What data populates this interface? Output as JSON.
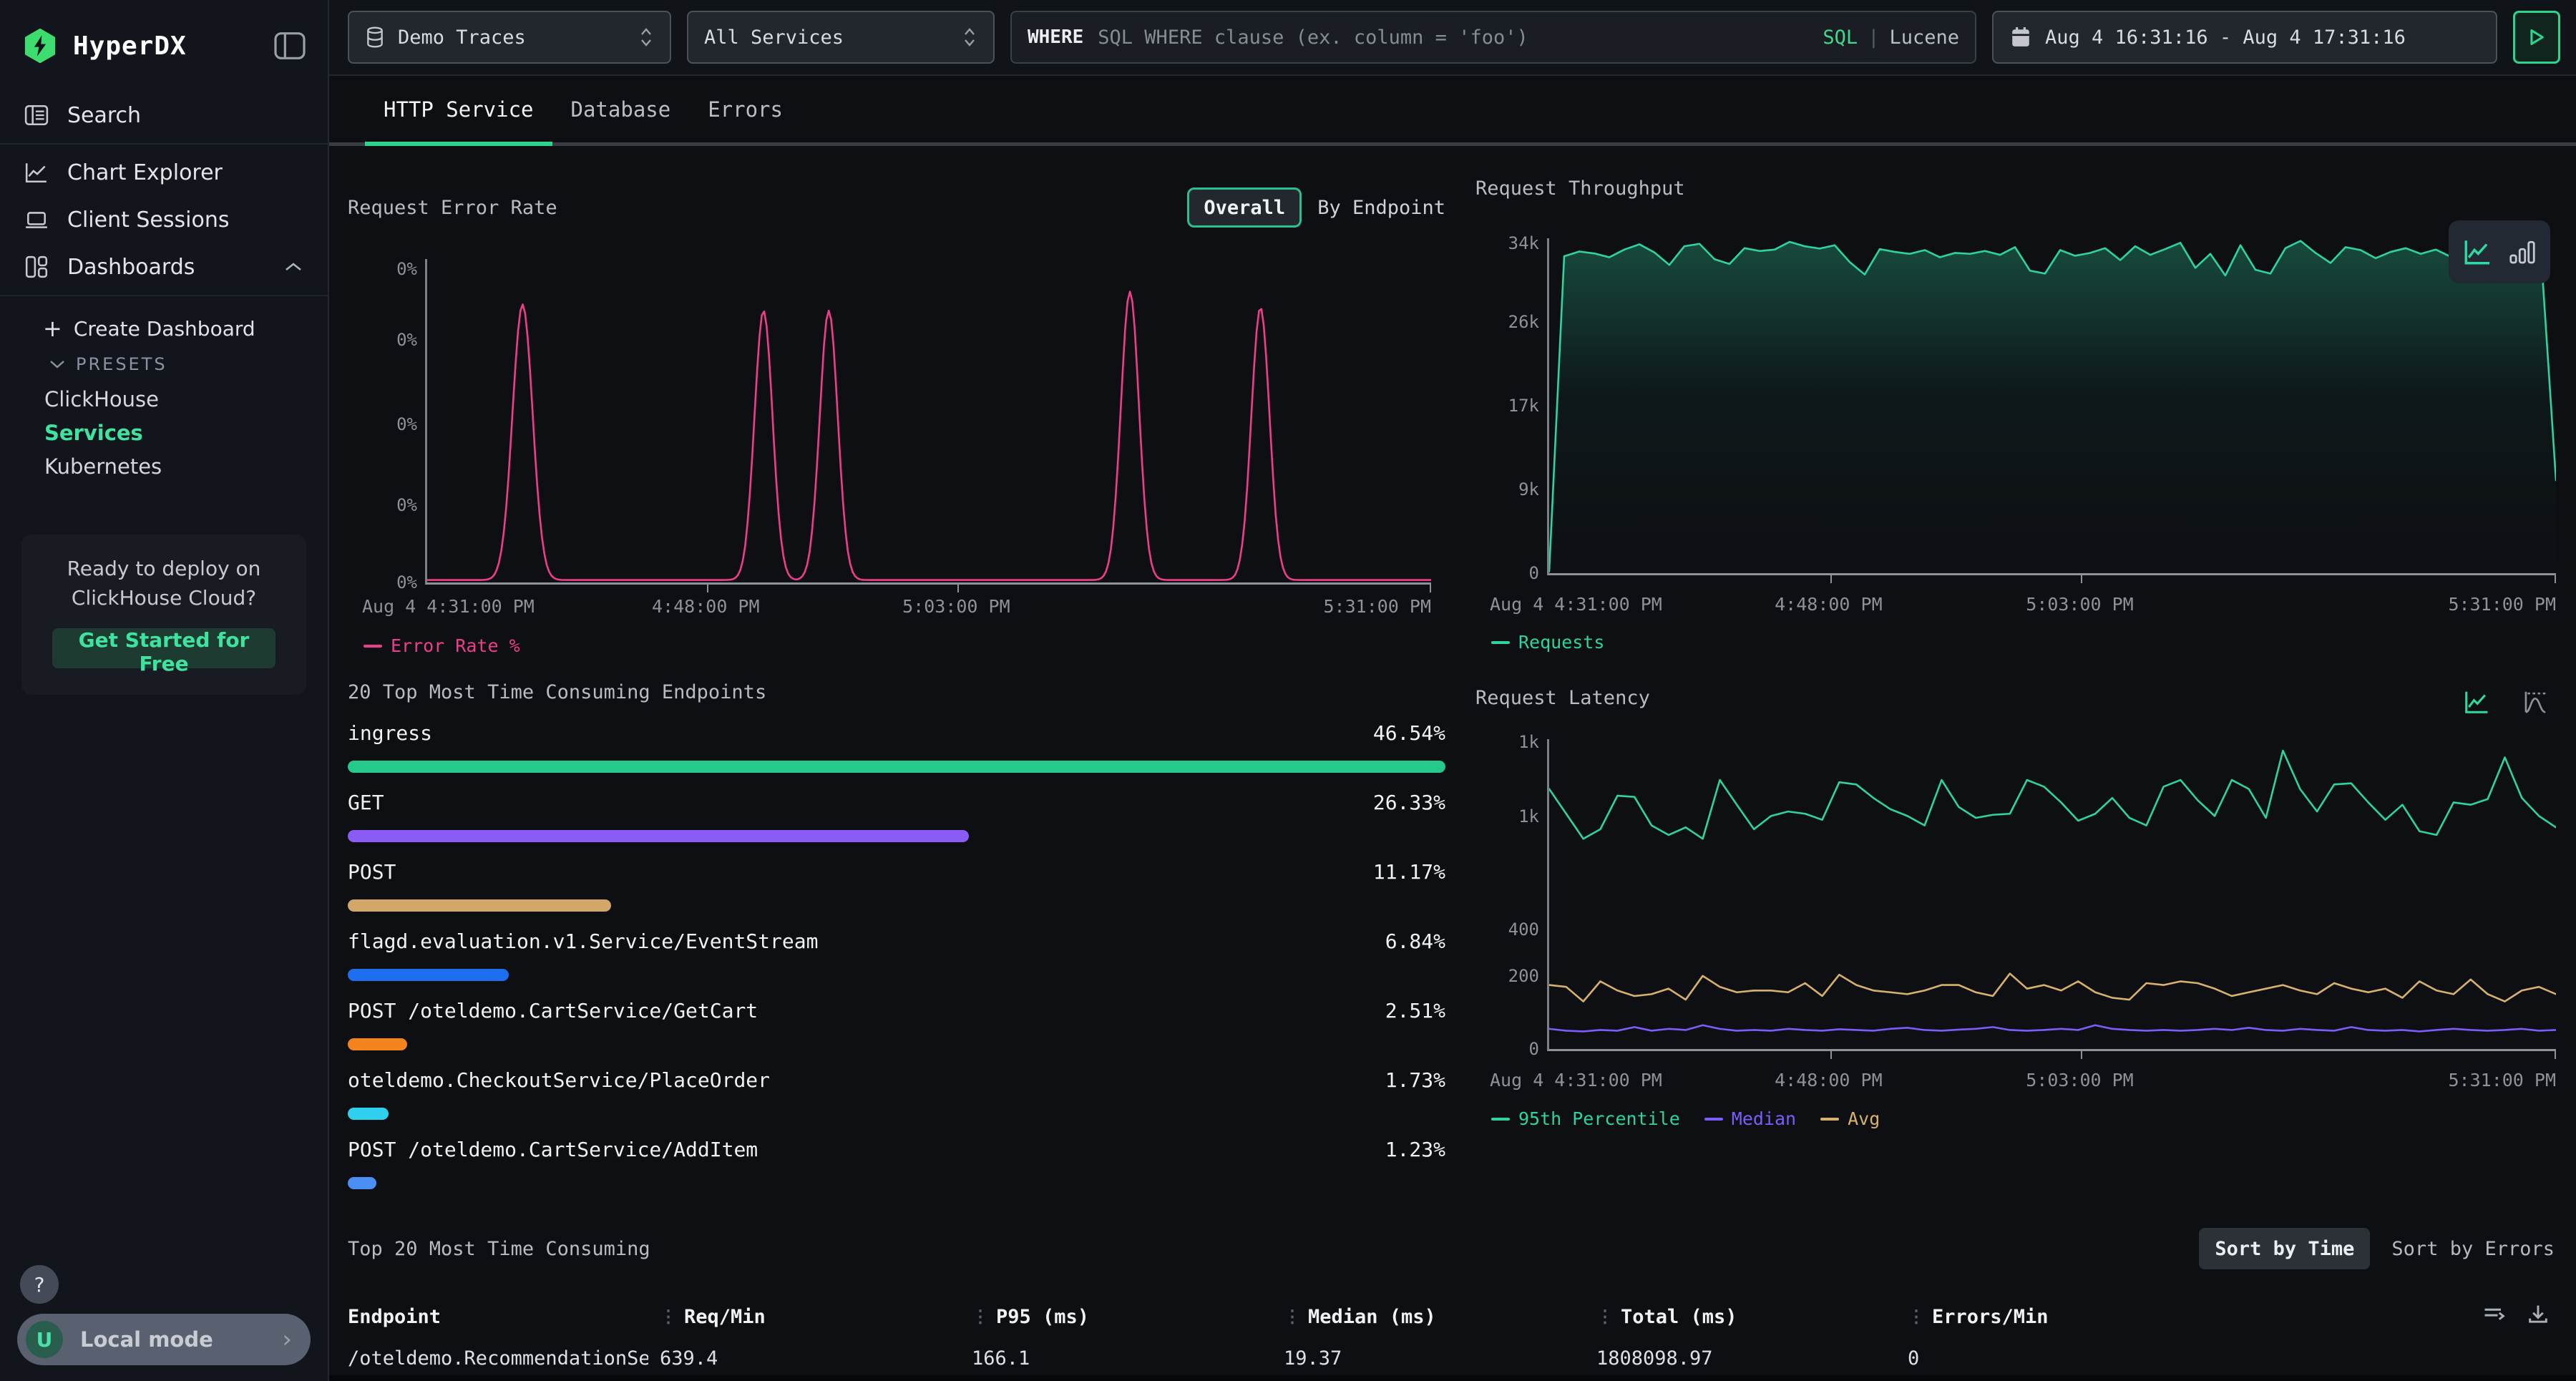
{
  "sidebar": {
    "brand": "HyperDX",
    "nav": [
      {
        "label": "Search"
      },
      {
        "label": "Chart Explorer"
      },
      {
        "label": "Client Sessions"
      },
      {
        "label": "Dashboards"
      }
    ],
    "create_dashboard": "Create Dashboard",
    "presets_label": "PRESETS",
    "presets": [
      {
        "label": "ClickHouse"
      },
      {
        "label": "Services"
      },
      {
        "label": "Kubernetes"
      }
    ],
    "promo": {
      "line1": "Ready to deploy on",
      "line2": "ClickHouse Cloud?",
      "cta": "Get Started for Free"
    },
    "help_label": "?",
    "user_initial": "U",
    "mode_label": "Local mode"
  },
  "topbar": {
    "source": "Demo Traces",
    "service": "All Services",
    "where_label": "WHERE",
    "where_placeholder": "SQL WHERE clause (ex. column = 'foo')",
    "lang_sql": "SQL",
    "lang_divider": "|",
    "lang_lucene": "Lucene",
    "date_range": "Aug 4 16:31:16 - Aug 4 17:31:16"
  },
  "tabs": [
    {
      "label": "HTTP Service"
    },
    {
      "label": "Database"
    },
    {
      "label": "Errors"
    }
  ],
  "panels": {
    "error_rate": {
      "title": "Request Error Rate",
      "overall": "Overall",
      "by_endpoint": "By Endpoint"
    },
    "throughput": {
      "title": "Request Throughput"
    },
    "endpoints": {
      "title": "20 Top Most Time Consuming Endpoints",
      "rows": [
        {
          "label": "ingress",
          "value": "46.54%",
          "width": "100%",
          "color": "#25c98c"
        },
        {
          "label": "GET",
          "value": "26.33%",
          "width": "56.6%",
          "color": "#8a5cf5"
        },
        {
          "label": "POST",
          "value": "11.17%",
          "width": "24%",
          "color": "#d2a86a"
        },
        {
          "label": "flagd.evaluation.v1.Service/EventStream",
          "value": "6.84%",
          "width": "14.7%",
          "color": "#1e6ef0"
        },
        {
          "label": "POST /oteldemo.CartService/GetCart",
          "value": "2.51%",
          "width": "5.4%",
          "color": "#f5831d"
        },
        {
          "label": "oteldemo.CheckoutService/PlaceOrder",
          "value": "1.73%",
          "width": "3.7%",
          "color": "#2ed0ee"
        },
        {
          "label": "POST /oteldemo.CartService/AddItem",
          "value": "1.23%",
          "width": "2.6%",
          "color": "#4a90f4"
        }
      ]
    },
    "latency": {
      "title": "Request Latency"
    }
  },
  "table": {
    "title": "Top 20 Most Time Consuming",
    "sort_time": "Sort by Time",
    "sort_errors": "Sort by Errors",
    "columns": [
      "Endpoint",
      "Req/Min",
      "P95 (ms)",
      "Median (ms)",
      "Total (ms)",
      "Errors/Min"
    ],
    "rows": [
      [
        "/oteldemo.RecommendationServ",
        "639.4",
        "166.1",
        "19.37",
        "1808098.97",
        "0"
      ]
    ]
  },
  "chart_data": [
    {
      "id": "error_rate",
      "type": "line",
      "title": "Request Error Rate",
      "ylabel": "Error Rate %",
      "unit": "%",
      "color": "#ee3d8a",
      "yticks": [
        "0%",
        "0%",
        "0%",
        "0%",
        "0%"
      ],
      "xticks": [
        "Aug 4 4:31:00 PM",
        "4:48:00 PM",
        "5:03:00 PM",
        "5:31:00 PM"
      ],
      "note": "flat at ~0% with brief narrow spikes; all y-axis ticks round to 0%",
      "spikes": [
        {
          "x": 0.095,
          "peak": 0.87,
          "w": 0.01
        },
        {
          "x": 0.335,
          "peak": 0.85,
          "w": 0.009
        },
        {
          "x": 0.4,
          "peak": 0.85,
          "w": 0.009
        },
        {
          "x": 0.7,
          "peak": 0.91,
          "w": 0.009
        },
        {
          "x": 0.83,
          "peak": 0.86,
          "w": 0.009
        }
      ],
      "legend": [
        {
          "name": "Error Rate %",
          "color": "#ee3d8a"
        }
      ]
    },
    {
      "id": "throughput",
      "type": "line",
      "title": "Request Throughput",
      "yticks": [
        "34k",
        "26k",
        "17k",
        "9k",
        "0"
      ],
      "xticks": [
        "Aug 4 4:31:00 PM",
        "4:48:00 PM",
        "5:03:00 PM",
        "5:31:00 PM"
      ],
      "ymax": 34500,
      "color": "#2dd4a0",
      "legend": [
        {
          "name": "Requests",
          "color": "#2dd4a0"
        }
      ],
      "values": [
        0,
        32800,
        33300,
        33100,
        32700,
        33500,
        34050,
        33200,
        31900,
        33850,
        34100,
        32500,
        32000,
        33650,
        33350,
        33500,
        34300,
        33850,
        33600,
        33950,
        32200,
        30900,
        33550,
        33250,
        33050,
        33450,
        32700,
        33150,
        33050,
        33350,
        32950,
        33750,
        31300,
        31000,
        33450,
        32850,
        33150,
        33650,
        32400,
        33850,
        32950,
        33550,
        34200,
        31600,
        33050,
        30800,
        33950,
        31400,
        31000,
        33650,
        34400,
        33150,
        32100,
        33750,
        33450,
        32600,
        33250,
        33650,
        33050,
        33500,
        32750,
        33150,
        33950,
        33250,
        32700,
        33450,
        33150,
        9500
      ]
    },
    {
      "id": "latency",
      "type": "line",
      "title": "Request Latency",
      "unit": "ms",
      "yticks": [
        "1k",
        "1k",
        "400",
        "200",
        "0"
      ],
      "xticks": [
        "Aug 4 4:31:00 PM",
        "4:48:00 PM",
        "5:03:00 PM",
        "5:31:00 PM"
      ],
      "scale": {
        "values": [
          0,
          200,
          400,
          1000,
          1341
        ],
        "fracs": [
          0,
          0.236,
          0.385,
          0.752,
          1
        ]
      },
      "series": [
        {
          "name": "95th Percentile",
          "color": "#2dd4a0",
          "values": [
            1120,
            1010,
            880,
            930,
            1090,
            1085,
            950,
            900,
            940,
            880,
            1160,
            1050,
            930,
            1000,
            1020,
            1010,
            980,
            1150,
            1140,
            1080,
            1030,
            1000,
            950,
            1160,
            1040,
            990,
            1005,
            1010,
            1160,
            1130,
            1060,
            975,
            1010,
            1080,
            990,
            950,
            1130,
            1160,
            1070,
            1000,
            1160,
            1120,
            990,
            1290,
            1120,
            1020,
            1140,
            1145,
            1060,
            980,
            1050,
            920,
            900,
            1060,
            1050,
            1075,
            1260,
            1080,
            1000,
            940
          ]
        },
        {
          "name": "Median",
          "color": "#7c5cfa",
          "values": [
            55,
            50,
            48,
            52,
            50,
            60,
            50,
            55,
            52,
            65,
            55,
            50,
            52,
            50,
            55,
            52,
            50,
            54,
            52,
            50,
            55,
            58,
            52,
            50,
            53,
            55,
            60,
            52,
            50,
            52,
            55,
            52,
            65,
            55,
            52,
            50,
            52,
            50,
            52,
            55,
            52,
            58,
            52,
            50,
            55,
            52,
            50,
            60,
            52,
            50,
            52,
            48,
            52,
            55,
            52,
            50,
            52,
            55,
            50,
            52
          ]
        },
        {
          "name": "Avg",
          "color": "#d8b16c",
          "values": [
            175,
            170,
            130,
            185,
            160,
            145,
            150,
            165,
            135,
            200,
            170,
            155,
            160,
            160,
            155,
            180,
            145,
            205,
            175,
            160,
            155,
            150,
            160,
            175,
            175,
            155,
            145,
            210,
            165,
            175,
            160,
            185,
            155,
            140,
            135,
            180,
            175,
            185,
            180,
            165,
            145,
            155,
            165,
            175,
            160,
            150,
            180,
            165,
            155,
            165,
            140,
            185,
            160,
            150,
            190,
            150,
            130,
            160,
            170,
            150
          ]
        }
      ]
    },
    {
      "id": "top_endpoints",
      "type": "bar",
      "title": "20 Top Most Time Consuming Endpoints",
      "categories": [
        "ingress",
        "GET",
        "POST",
        "flagd.evaluation.v1.Service/EventStream",
        "POST /oteldemo.CartService/GetCart",
        "oteldemo.CheckoutService/PlaceOrder",
        "POST /oteldemo.CartService/AddItem"
      ],
      "values": [
        46.54,
        26.33,
        11.17,
        6.84,
        2.51,
        1.73,
        1.23
      ],
      "unit": "%"
    }
  ]
}
